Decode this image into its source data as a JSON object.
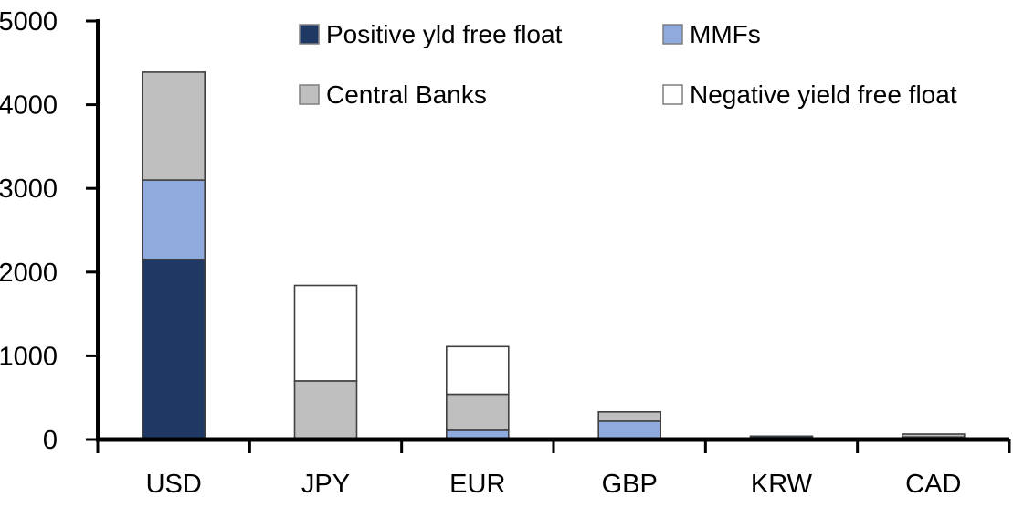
{
  "chart_data": {
    "type": "bar",
    "stacked": true,
    "title": "",
    "xlabel": "",
    "ylabel": "",
    "categories": [
      "USD",
      "JPY",
      "EUR",
      "GBP",
      "KRW",
      "CAD"
    ],
    "series": [
      {
        "name": "Positive yld free float",
        "color": "#1F3864",
        "values": [
          2150,
          0,
          0,
          0,
          40,
          30
        ]
      },
      {
        "name": "MMFs",
        "color": "#8FAADC",
        "values": [
          950,
          0,
          110,
          220,
          0,
          0
        ]
      },
      {
        "name": "Central Banks",
        "color": "#BFBFBF",
        "values": [
          1290,
          700,
          430,
          110,
          0,
          35
        ]
      },
      {
        "name": "Negative yield free float",
        "color": "#FFFFFF",
        "values": [
          0,
          1140,
          570,
          0,
          0,
          0
        ]
      }
    ],
    "ylim": [
      0,
      5000
    ],
    "yticks": [
      "0",
      "1000",
      "2000",
      "3000",
      "4000",
      "5000"
    ],
    "grid": false,
    "legend_position": "top",
    "legend_rows": [
      [
        "Positive yld free float",
        "MMFs"
      ],
      [
        "Central Banks",
        "Negative yield free float"
      ]
    ]
  },
  "styles": {
    "axis_color": "#000000",
    "segment_border_color": "#404040",
    "legend_border_color": "#7F7F7F",
    "text_color": "#000000",
    "background": "#FFFFFF"
  }
}
